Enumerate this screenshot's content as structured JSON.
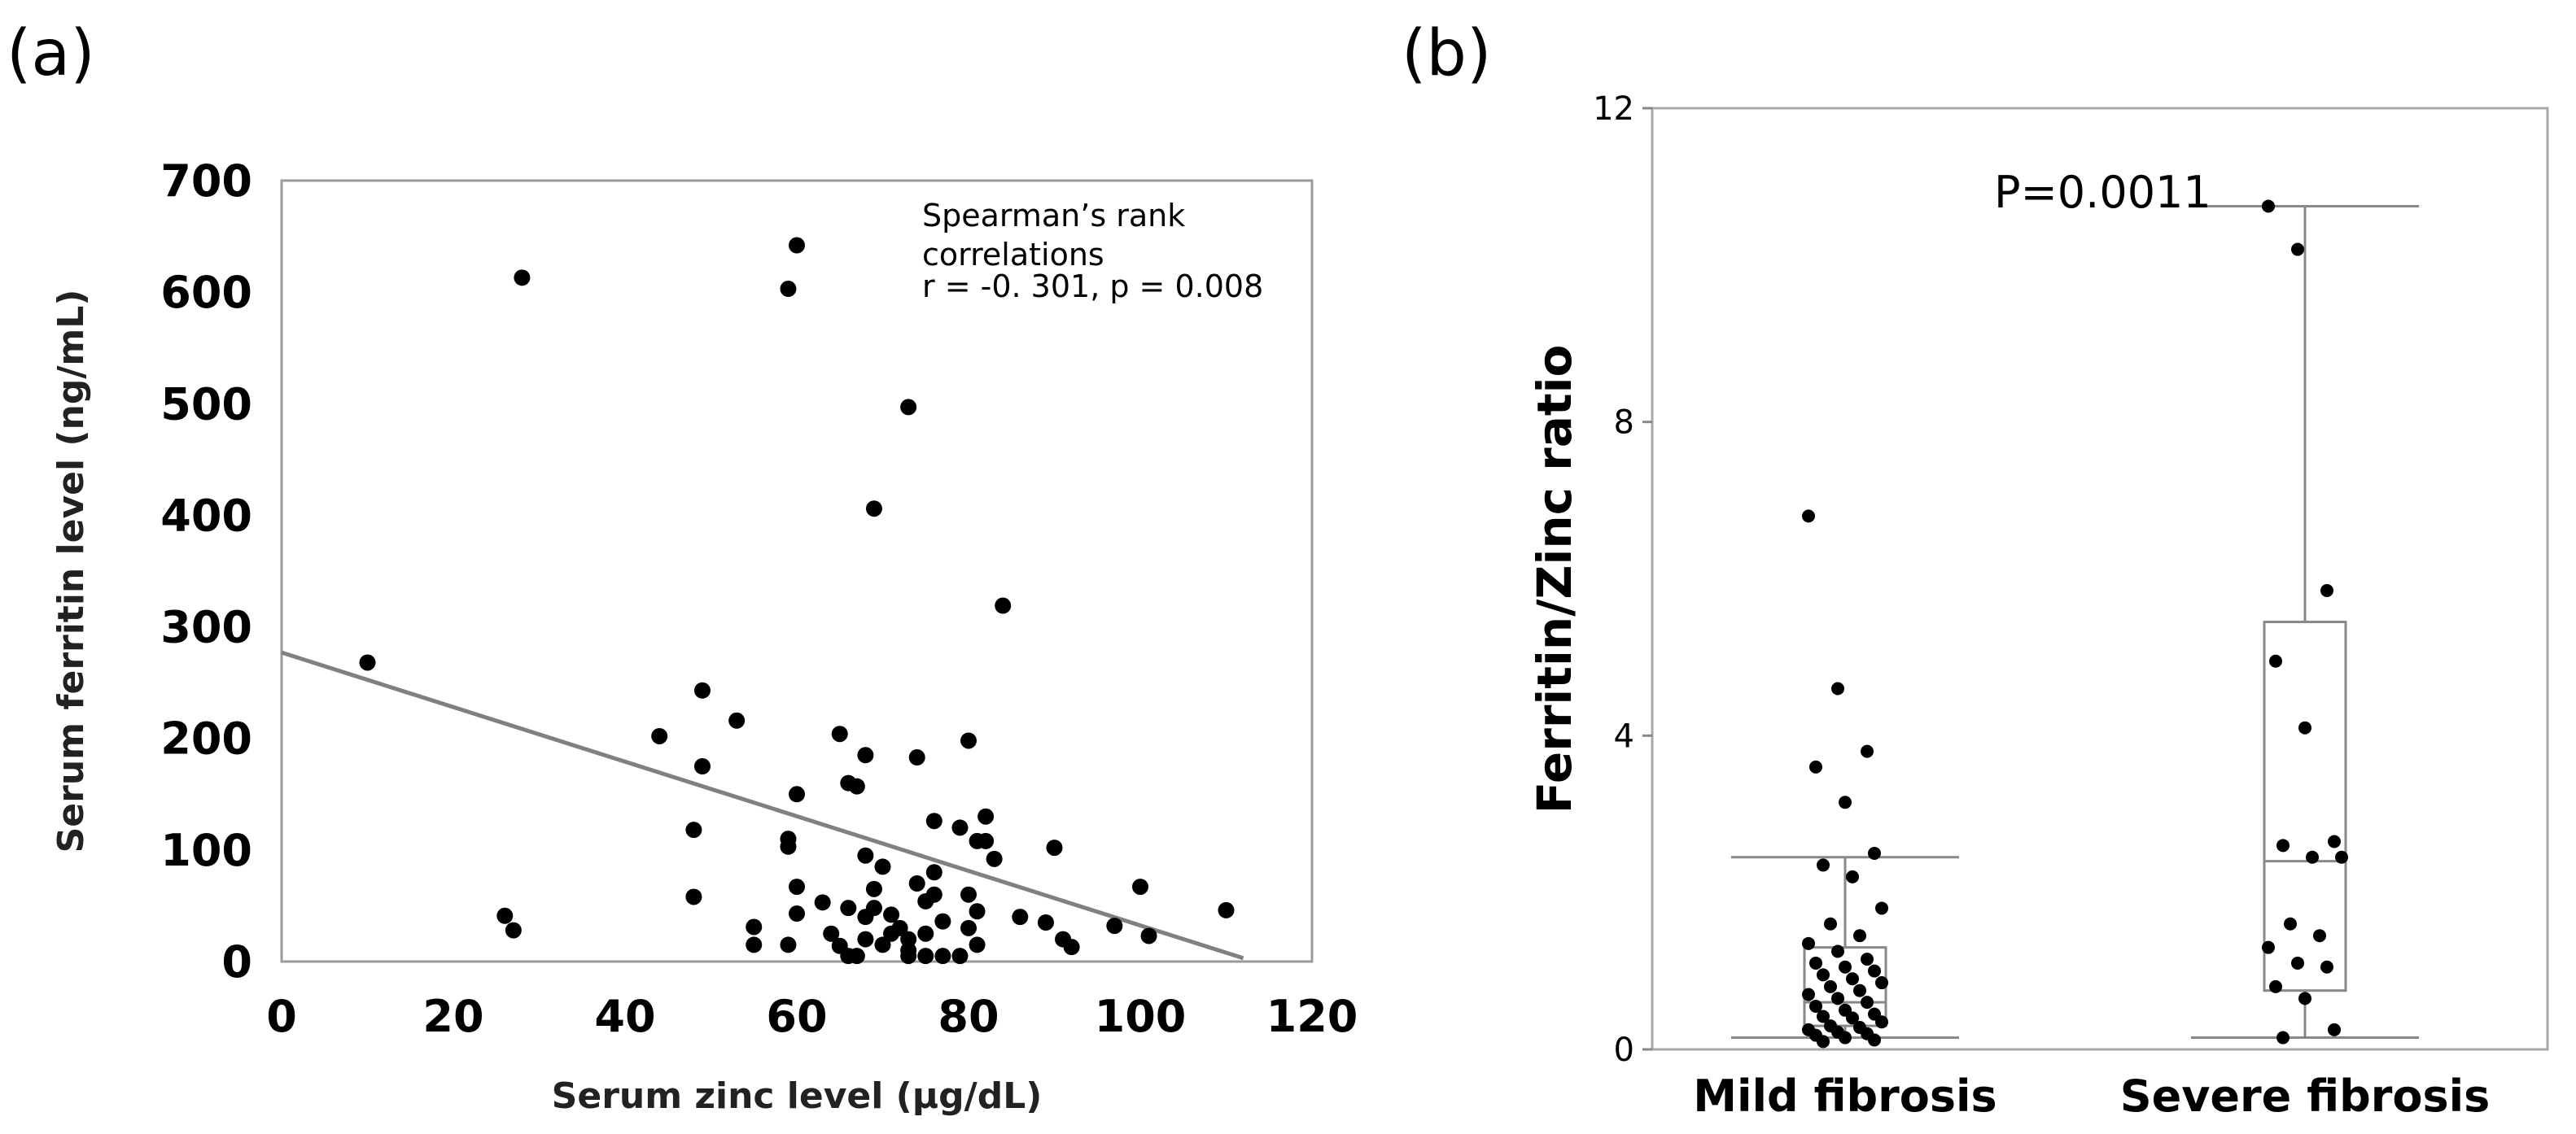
{
  "chart_data": [
    {
      "panel_label": "(a)",
      "type": "scatter",
      "xlabel": "Serum zinc level (μg/dL)",
      "ylabel": "Serum ferritin level (ng/mL)",
      "xlim": [
        0,
        120
      ],
      "ylim": [
        0,
        700
      ],
      "xticks": [
        "0",
        "20",
        "40",
        "60",
        "80",
        "100",
        "120"
      ],
      "yticks": [
        "0",
        "100",
        "200",
        "300",
        "400",
        "500",
        "600",
        "700"
      ],
      "annotation": [
        "Spearman’s rank",
        "correlations",
        "r = -0.  301, p = 0.008"
      ],
      "regression_line": {
        "x": [
          0,
          112
        ],
        "y": [
          277,
          3
        ]
      },
      "points": [
        [
          10,
          268
        ],
        [
          26,
          41
        ],
        [
          27,
          28
        ],
        [
          28,
          613
        ],
        [
          44,
          202
        ],
        [
          48,
          118
        ],
        [
          48,
          58
        ],
        [
          49,
          243
        ],
        [
          49,
          175
        ],
        [
          53,
          216
        ],
        [
          55,
          31
        ],
        [
          55,
          15
        ],
        [
          59,
          603
        ],
        [
          59,
          110
        ],
        [
          59,
          103
        ],
        [
          59,
          15
        ],
        [
          60,
          642
        ],
        [
          60,
          150
        ],
        [
          60,
          67
        ],
        [
          60,
          43
        ],
        [
          63,
          53
        ],
        [
          64,
          25
        ],
        [
          65,
          14
        ],
        [
          65,
          204
        ],
        [
          66,
          48
        ],
        [
          66,
          5
        ],
        [
          66,
          160
        ],
        [
          67,
          157
        ],
        [
          67,
          5
        ],
        [
          68,
          185
        ],
        [
          68,
          95
        ],
        [
          68,
          40
        ],
        [
          68,
          20
        ],
        [
          69,
          406
        ],
        [
          69,
          65
        ],
        [
          69,
          48
        ],
        [
          70,
          85
        ],
        [
          70,
          15
        ],
        [
          71,
          42
        ],
        [
          71,
          25
        ],
        [
          72,
          30
        ],
        [
          73,
          497
        ],
        [
          73,
          10
        ],
        [
          73,
          5
        ],
        [
          73,
          20
        ],
        [
          74,
          183
        ],
        [
          74,
          70
        ],
        [
          75,
          54
        ],
        [
          75,
          5
        ],
        [
          75,
          25
        ],
        [
          76,
          126
        ],
        [
          76,
          80
        ],
        [
          76,
          60
        ],
        [
          77,
          5
        ],
        [
          77,
          36
        ],
        [
          79,
          120
        ],
        [
          79,
          5
        ],
        [
          80,
          198
        ],
        [
          80,
          60
        ],
        [
          80,
          30
        ],
        [
          81,
          108
        ],
        [
          81,
          45
        ],
        [
          81,
          15
        ],
        [
          82,
          130
        ],
        [
          82,
          108
        ],
        [
          83,
          92
        ],
        [
          84,
          319
        ],
        [
          86,
          40
        ],
        [
          89,
          35
        ],
        [
          90,
          102
        ],
        [
          91,
          20
        ],
        [
          92,
          13
        ],
        [
          97,
          32
        ],
        [
          100,
          67
        ],
        [
          101,
          23
        ],
        [
          110,
          46
        ]
      ]
    },
    {
      "panel_label": "(b)",
      "type": "box",
      "title": "P=0.0011",
      "ylabel": "Ferritin/Zinc ratio",
      "ylim": [
        0,
        12
      ],
      "yticks": [
        "0",
        "4",
        "8",
        "12"
      ],
      "categories": [
        "Mild fibrosis",
        "Severe fibrosis"
      ],
      "boxes": [
        {
          "name": "Mild fibrosis",
          "whisker_low": 0.15,
          "q1": 0.3,
          "median": 0.6,
          "q3": 1.3,
          "whisker_high": 2.45
        },
        {
          "name": "Severe fibrosis",
          "whisker_low": 0.15,
          "q1": 0.75,
          "median": 2.4,
          "q3": 5.45,
          "whisker_high": 10.75
        }
      ],
      "points": [
        [
          6.8,
          4.6,
          3.8,
          3.6,
          3.15,
          2.5,
          2.35,
          2.2,
          1.8,
          1.6,
          1.45,
          1.35,
          1.25,
          1.15,
          1.1,
          1.05,
          1.0,
          0.95,
          0.9,
          0.85,
          0.8,
          0.75,
          0.7,
          0.65,
          0.6,
          0.55,
          0.5,
          0.45,
          0.42,
          0.4,
          0.35,
          0.3,
          0.28,
          0.25,
          0.22,
          0.2,
          0.18,
          0.15,
          0.12,
          0.1
        ],
        [
          10.75,
          10.2,
          5.85,
          4.95,
          4.1,
          2.65,
          2.6,
          2.45,
          2.45,
          1.6,
          1.45,
          1.3,
          1.1,
          1.05,
          0.8,
          0.65,
          0.25,
          0.15
        ]
      ]
    }
  ]
}
